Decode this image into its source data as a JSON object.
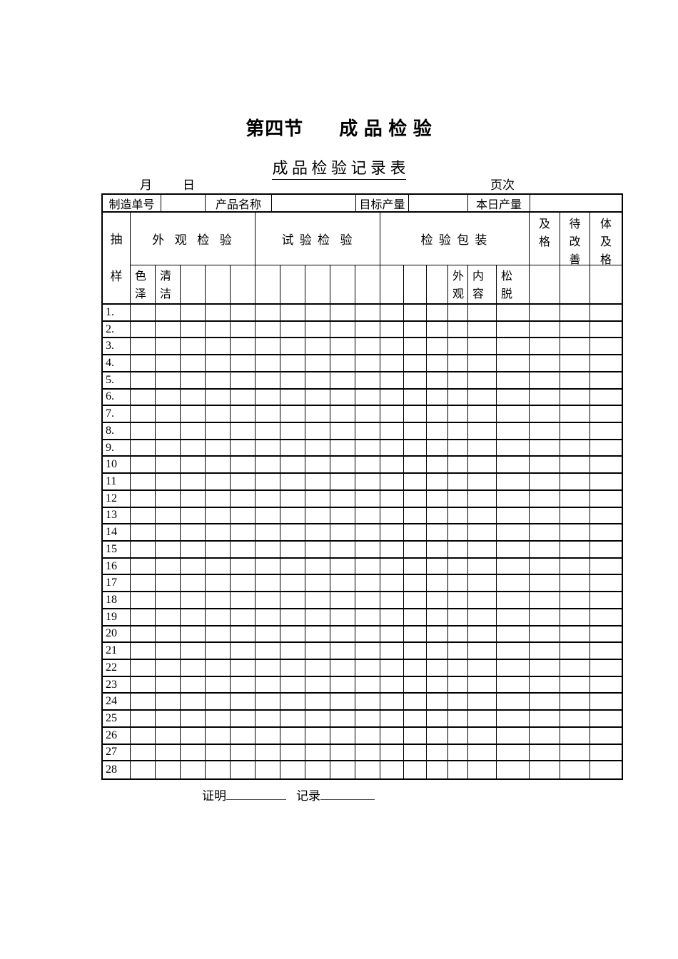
{
  "title": {
    "section": "第四节",
    "heading": "成 品 检 验"
  },
  "subtitle": "成 品 检 验 记 录 表",
  "top_labels": {
    "month": "月",
    "day": "日",
    "page": "页次"
  },
  "info_row": [
    {
      "label": "制造单号",
      "value": ""
    },
    {
      "label": "产品名称",
      "value": ""
    },
    {
      "label": "目标产量",
      "value": ""
    },
    {
      "label": "本日产量",
      "value": ""
    }
  ],
  "table": {
    "sample_column": "抽样",
    "groups": [
      {
        "label": "外  观  检  验",
        "subcolumns": [
          "色泽",
          "清洁",
          "",
          "",
          ""
        ]
      },
      {
        "label": "试 验 检  验",
        "subcolumns": [
          "",
          "",
          "",
          "",
          ""
        ]
      },
      {
        "label": "检 验 包 装",
        "subcolumns": [
          "",
          "",
          "",
          "外观",
          "内容",
          "松脱"
        ]
      }
    ],
    "result_columns": [
      "及格",
      "待改善",
      "体及格"
    ],
    "rows": [
      "1.",
      "2.",
      "3.",
      "4.",
      "5.",
      "6.",
      "7.",
      "8.",
      "9.",
      "10",
      "11",
      "12",
      "13",
      "14",
      "15",
      "16",
      "17",
      "18",
      "19",
      "20",
      "21",
      "22",
      "23",
      "24",
      "25",
      "26",
      "27",
      "28"
    ]
  },
  "footer": {
    "certify": "证明",
    "record": "记录"
  }
}
